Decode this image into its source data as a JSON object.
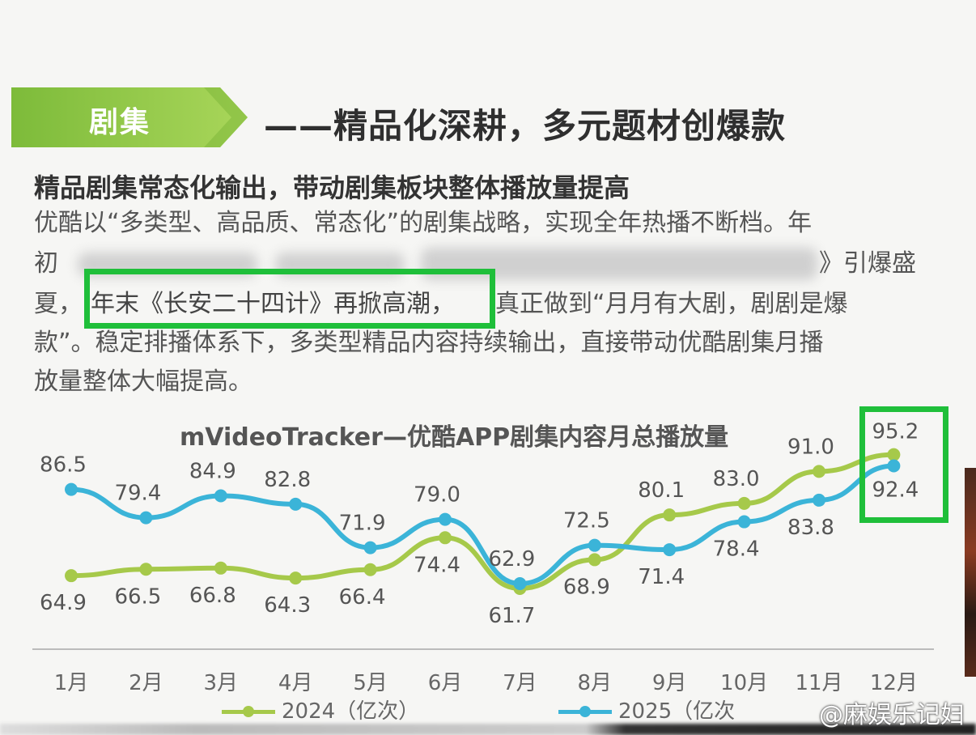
{
  "section": {
    "tag": "剧集",
    "heading": "——精品化深耕，多元题材创爆款"
  },
  "subheading": "精品剧集常态化输出，带动剧集板块整体播放量提高",
  "paragraph": {
    "line1": "优酷以“多类型、高品质、常态化”的剧集战略，实现全年热播不断档。年",
    "line2a": "初",
    "line2b": "》引爆盛",
    "line3a": "夏，",
    "line3b": "年末《长安二十四计》再掀高潮，",
    "line3c": "真正做到“月月有大剧，剧剧是爆",
    "line4": "款”。稳定排播体系下，多类型精品内容持续输出，直接带动优酷剧集月播",
    "line5": "放量整体大幅提高。"
  },
  "watermark": "@麻娱乐记妇",
  "colors": {
    "green_tag": "#8dc63f",
    "series_2024": "#a6c94a",
    "series_2025": "#3bb4d8",
    "highlight": "#1fbf3a"
  },
  "chart_data": {
    "type": "line",
    "title": "mVideoTracker—优酷APP剧集内容月总播放量",
    "categories": [
      "1月",
      "2月",
      "3月",
      "4月",
      "5月",
      "6月",
      "7月",
      "8月",
      "9月",
      "10月",
      "11月",
      "12月"
    ],
    "series": [
      {
        "name": "2024（亿次）",
        "values": [
          64.9,
          66.5,
          66.8,
          64.3,
          66.4,
          74.4,
          61.7,
          68.9,
          80.1,
          83.0,
          91.0,
          95.2
        ],
        "labels": [
          "64.9",
          "66.5",
          "66.8",
          "64.3",
          "66.4",
          "74.4",
          "61.7",
          "68.9",
          "80.1",
          "83.0",
          "91.0",
          "95.2"
        ]
      },
      {
        "name": "2025（亿次",
        "values": [
          86.5,
          79.4,
          84.9,
          82.8,
          71.9,
          79.0,
          62.9,
          72.5,
          71.4,
          78.4,
          83.8,
          92.4
        ],
        "labels": [
          "86.5",
          "79.4",
          "84.9",
          "82.8",
          "71.9",
          "79.0",
          "62.9",
          "72.5",
          "71.4",
          "78.4",
          "83.8",
          "92.4"
        ]
      }
    ],
    "ylim": [
      55,
      100
    ],
    "grid": false,
    "legend": "bottom"
  }
}
